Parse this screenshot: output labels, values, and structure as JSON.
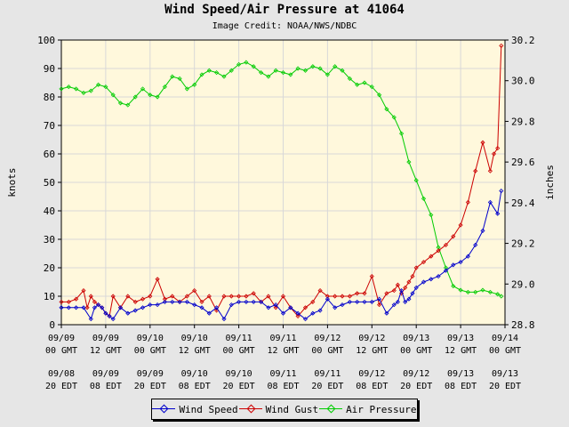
{
  "chart_data": {
    "type": "line",
    "title": "Wind Speed/Air Pressure at 41064",
    "subtitle": "Image Credit: NOAA/NWS/NDBC",
    "ylabel": "knots",
    "y2label": "inches",
    "ylim": [
      0,
      100
    ],
    "y2lim": [
      28.8,
      30.2
    ],
    "yticks": [
      "0",
      "10",
      "20",
      "30",
      "40",
      "50",
      "60",
      "70",
      "80",
      "90",
      "100"
    ],
    "y2ticks": [
      "28.8",
      "29.0",
      "29.2",
      "29.4",
      "29.6",
      "29.8",
      "30.0",
      "30.2"
    ],
    "xlim_hours": [
      0,
      120
    ],
    "x_ticks": [
      {
        "gmt1": "09/09",
        "gmt2": "00 GMT",
        "edt1": "09/08",
        "edt2": "20 EDT"
      },
      {
        "gmt1": "09/09",
        "gmt2": "12 GMT",
        "edt1": "09/09",
        "edt2": "08 EDT"
      },
      {
        "gmt1": "09/10",
        "gmt2": "00 GMT",
        "edt1": "09/09",
        "edt2": "20 EDT"
      },
      {
        "gmt1": "09/10",
        "gmt2": "12 GMT",
        "edt1": "09/10",
        "edt2": "08 EDT"
      },
      {
        "gmt1": "09/11",
        "gmt2": "00 GMT",
        "edt1": "09/10",
        "edt2": "20 EDT"
      },
      {
        "gmt1": "09/11",
        "gmt2": "12 GMT",
        "edt1": "09/11",
        "edt2": "08 EDT"
      },
      {
        "gmt1": "09/12",
        "gmt2": "00 GMT",
        "edt1": "09/11",
        "edt2": "20 EDT"
      },
      {
        "gmt1": "09/12",
        "gmt2": "12 GMT",
        "edt1": "09/12",
        "edt2": "08 EDT"
      },
      {
        "gmt1": "09/13",
        "gmt2": "00 GMT",
        "edt1": "09/12",
        "edt2": "20 EDT"
      },
      {
        "gmt1": "09/13",
        "gmt2": "12 GMT",
        "edt1": "09/13",
        "edt2": "08 EDT"
      },
      {
        "gmt1": "09/14",
        "gmt2": "00 GMT",
        "edt1": "09/13",
        "edt2": "20 EDT"
      }
    ],
    "grid": true,
    "legend_position": "bottom-center",
    "series": [
      {
        "name": "Wind Speed",
        "axis": "left",
        "color": "#0000cc",
        "x": [
          0,
          2,
          4,
          6,
          8,
          9,
          10,
          11,
          12,
          13,
          14,
          16,
          18,
          20,
          22,
          24,
          26,
          28,
          30,
          32,
          34,
          36,
          38,
          40,
          42,
          44,
          46,
          48,
          50,
          52,
          54,
          56,
          58,
          60,
          62,
          64,
          66,
          68,
          70,
          72,
          74,
          76,
          78,
          80,
          82,
          84,
          86,
          88,
          90,
          91,
          92,
          93,
          94,
          95,
          96,
          98,
          100,
          102,
          104,
          106,
          108,
          110,
          112,
          114,
          116,
          118,
          119
        ],
        "y": [
          6,
          6,
          6,
          6,
          2,
          6,
          7,
          6,
          4,
          3,
          2,
          6,
          4,
          5,
          6,
          7,
          7,
          8,
          8,
          8,
          8,
          7,
          6,
          4,
          6,
          2,
          7,
          8,
          8,
          8,
          8,
          6,
          7,
          4,
          6,
          4,
          2,
          4,
          5,
          9,
          6,
          7,
          8,
          8,
          8,
          8,
          9,
          4,
          7,
          8,
          12,
          8,
          9,
          11,
          13,
          15,
          16,
          17,
          19,
          21,
          22,
          24,
          28,
          33,
          43,
          39,
          47
        ]
      },
      {
        "name": "Wind Gust",
        "axis": "left",
        "color": "#cc0000",
        "x": [
          0,
          2,
          4,
          6,
          7,
          8,
          9,
          10,
          11,
          12,
          13,
          14,
          16,
          18,
          20,
          22,
          24,
          26,
          28,
          30,
          32,
          34,
          36,
          38,
          40,
          42,
          44,
          46,
          48,
          50,
          52,
          54,
          56,
          58,
          60,
          62,
          64,
          66,
          68,
          70,
          72,
          74,
          76,
          78,
          80,
          82,
          84,
          86,
          88,
          90,
          91,
          92,
          93,
          94,
          95,
          96,
          98,
          100,
          102,
          104,
          106,
          108,
          110,
          112,
          114,
          116,
          117,
          118,
          119
        ],
        "y": [
          8,
          8,
          9,
          12,
          6,
          10,
          8,
          7,
          6,
          4,
          3,
          10,
          6,
          10,
          8,
          9,
          10,
          16,
          9,
          10,
          8,
          10,
          12,
          8,
          10,
          5,
          10,
          10,
          10,
          10,
          11,
          8,
          10,
          6,
          10,
          6,
          3,
          6,
          8,
          12,
          10,
          10,
          10,
          10,
          11,
          11,
          17,
          7,
          11,
          12,
          14,
          11,
          13,
          15,
          17,
          20,
          22,
          24,
          26,
          28,
          31,
          35,
          43,
          54,
          64,
          54,
          60,
          62,
          98
        ]
      },
      {
        "name": "Air Pressure",
        "axis": "right",
        "color": "#00cc00",
        "x": [
          0,
          2,
          4,
          6,
          8,
          10,
          12,
          14,
          16,
          18,
          20,
          22,
          24,
          26,
          28,
          30,
          32,
          34,
          36,
          38,
          40,
          42,
          44,
          46,
          48,
          50,
          52,
          54,
          56,
          58,
          60,
          62,
          64,
          66,
          68,
          70,
          72,
          74,
          76,
          78,
          80,
          82,
          84,
          86,
          88,
          90,
          92,
          94,
          96,
          98,
          100,
          102,
          104,
          106,
          108,
          110,
          112,
          114,
          116,
          118,
          119
        ],
        "y": [
          29.96,
          29.97,
          29.96,
          29.94,
          29.95,
          29.98,
          29.97,
          29.93,
          29.89,
          29.88,
          29.92,
          29.96,
          29.93,
          29.92,
          29.97,
          30.02,
          30.01,
          29.96,
          29.98,
          30.03,
          30.05,
          30.04,
          30.02,
          30.05,
          30.08,
          30.09,
          30.07,
          30.04,
          30.02,
          30.05,
          30.04,
          30.03,
          30.06,
          30.05,
          30.07,
          30.06,
          30.03,
          30.07,
          30.05,
          30.01,
          29.98,
          29.99,
          29.97,
          29.93,
          29.86,
          29.82,
          29.74,
          29.6,
          29.51,
          29.42,
          29.34,
          29.18,
          29.08,
          28.99,
          28.97,
          28.96,
          28.96,
          28.97,
          28.96,
          28.95,
          28.94
        ]
      }
    ]
  }
}
